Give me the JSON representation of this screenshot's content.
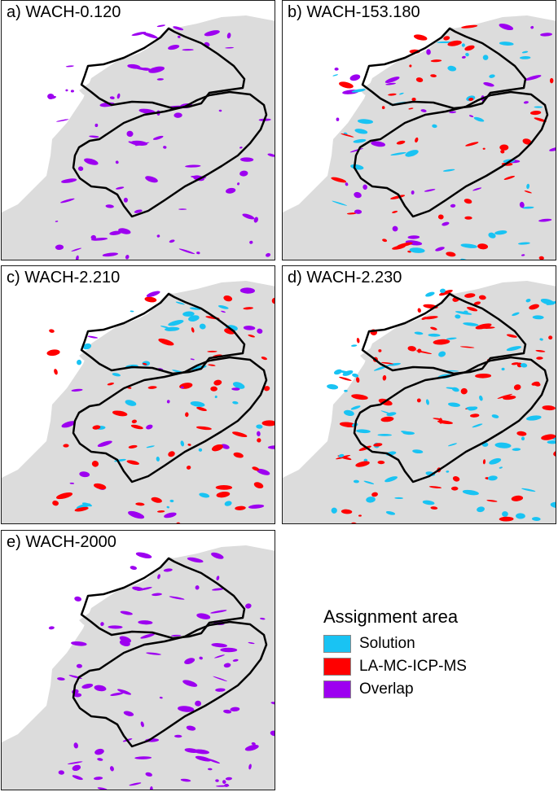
{
  "colors": {
    "solution": "#19c3f3",
    "lamc": "#ff0000",
    "overlap": "#9d00f0",
    "land": "#dcdcdc",
    "outline": "#000000"
  },
  "panels": [
    {
      "label": "a) WACH-0.120",
      "mix": {
        "overlap": 1.0,
        "solution": 0.0,
        "lamc": 0.0
      },
      "density": 0.3
    },
    {
      "label": "b) WACH-153.180",
      "mix": {
        "overlap": 0.35,
        "solution": 0.3,
        "lamc": 0.35
      },
      "density": 0.45
    },
    {
      "label": "c) WACH-2.210",
      "mix": {
        "overlap": 0.2,
        "solution": 0.35,
        "lamc": 0.45
      },
      "density": 0.45
    },
    {
      "label": "d) WACH-2.230",
      "mix": {
        "overlap": 0.0,
        "solution": 0.5,
        "lamc": 0.5
      },
      "density": 0.6
    },
    {
      "label": "e) WACH-2000",
      "mix": {
        "overlap": 1.0,
        "solution": 0.0,
        "lamc": 0.0
      },
      "density": 0.35
    }
  ],
  "legend": {
    "title": "Assignment area",
    "items": [
      {
        "key": "solution",
        "label": "Solution"
      },
      {
        "key": "lamc",
        "label": "LA-MC-ICP-MS"
      },
      {
        "key": "overlap",
        "label": "Overlap"
      }
    ]
  }
}
